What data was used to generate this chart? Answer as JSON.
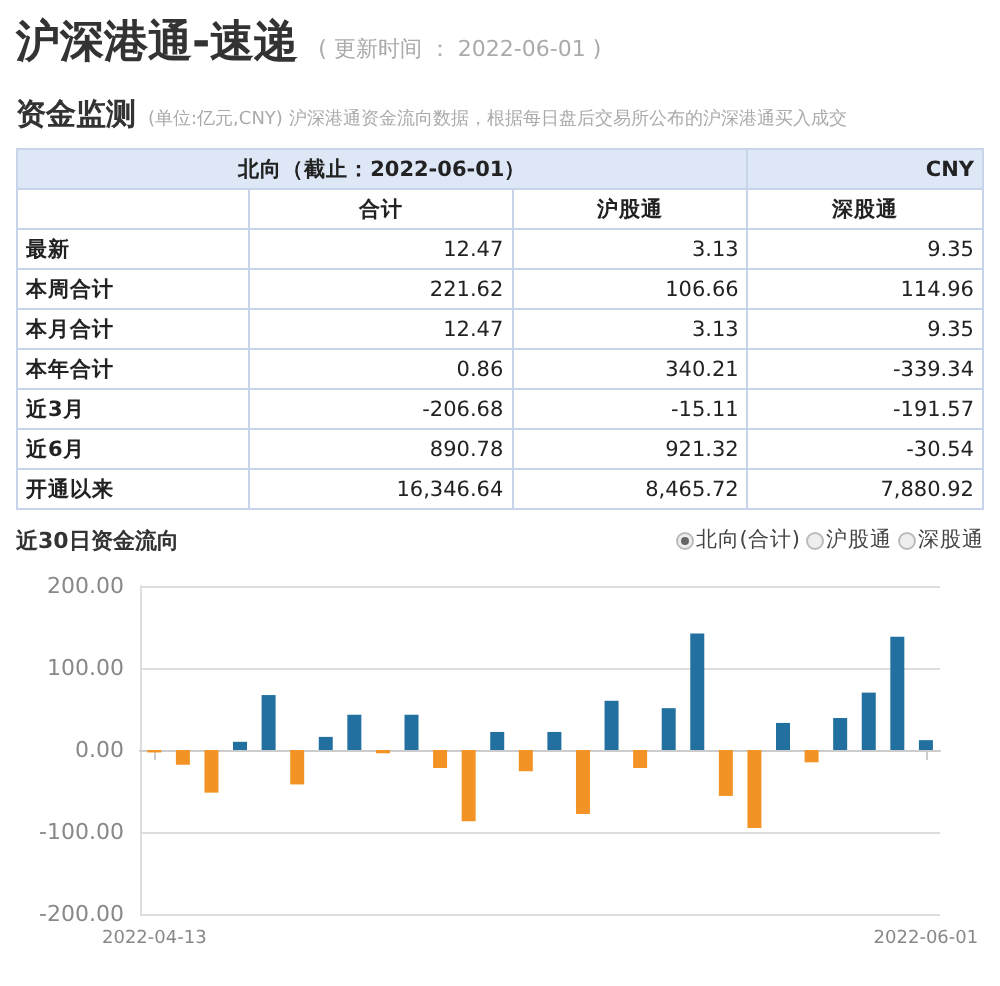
{
  "chart_data": [
    {
      "type": "other",
      "title": "沪深港通-速递",
      "subtitle": "( 更新时间 ： 2022-06-01 )"
    },
    {
      "type": "other",
      "title": "资金监测",
      "subtitle": "(单位:亿元,CNY)  沪深港通资金流向数据，根据每日盘后交易所公布的沪深港通买入成交",
      "annotations": [
        "北向（截止：2022-06-01）",
        "CNY"
      ],
      "categories": [
        "合计",
        "沪股通",
        "深股通"
      ],
      "y_categories": [
        "最新",
        "本周合计",
        "本月合计",
        "本年合计",
        "近3月",
        "近6月",
        "开通以来"
      ],
      "cell_labels": [
        [
          "12.47",
          "3.13",
          "9.35"
        ],
        [
          "221.62",
          "106.66",
          "114.96"
        ],
        [
          "12.47",
          "3.13",
          "9.35"
        ],
        [
          "0.86",
          "340.21",
          "-339.34"
        ],
        [
          "-206.68",
          "-15.11",
          "-191.57"
        ],
        [
          "890.78",
          "921.32",
          "-30.54"
        ],
        [
          "16,346.64",
          "8,465.72",
          "7,880.92"
        ]
      ]
    },
    {
      "type": "bar",
      "title": "近30日资金流向",
      "annotations": [
        "沪股通",
        "深股通"
      ],
      "categories": [
        "2022-04-13",
        null,
        null,
        null,
        null,
        null,
        null,
        null,
        null,
        null,
        null,
        null,
        null,
        null,
        null,
        null,
        null,
        null,
        null,
        null,
        null,
        null,
        null,
        null,
        null,
        null,
        null,
        "2022-06-01"
      ],
      "series": [
        {
          "name": "北向(合计)",
          "values": [
            -3,
            -18,
            -52,
            10,
            67,
            -42,
            16,
            43,
            -4,
            43,
            -22,
            -87,
            22,
            -26,
            22,
            -78,
            60,
            -22,
            51,
            142,
            -56,
            -95,
            33,
            -15,
            39,
            70,
            138,
            12
          ],
          "colors": [
            "#f39325",
            "#f39325",
            "#f39325",
            "#21709f",
            "#21709f",
            "#f39325",
            "#21709f",
            "#21709f",
            "#f39325",
            "#21709f",
            "#f39325",
            "#f39325",
            "#21709f",
            "#f39325",
            "#21709f",
            "#f39325",
            "#21709f",
            "#f39325",
            "#21709f",
            "#21709f",
            "#f39325",
            "#f39325",
            "#21709f",
            "#f39325",
            "#21709f",
            "#21709f",
            "#21709f",
            "#21709f"
          ]
        }
      ],
      "ylim": [
        -200,
        200
      ],
      "yticks": [
        {
          "value": -200,
          "label": "-200.00"
        },
        {
          "value": -100,
          "label": "-100.00"
        },
        {
          "value": 0,
          "label": "0.00"
        },
        {
          "value": 100,
          "label": "100.00"
        },
        {
          "value": 200,
          "label": "200.00"
        }
      ],
      "grid": "y",
      "legend": "top right"
    }
  ]
}
